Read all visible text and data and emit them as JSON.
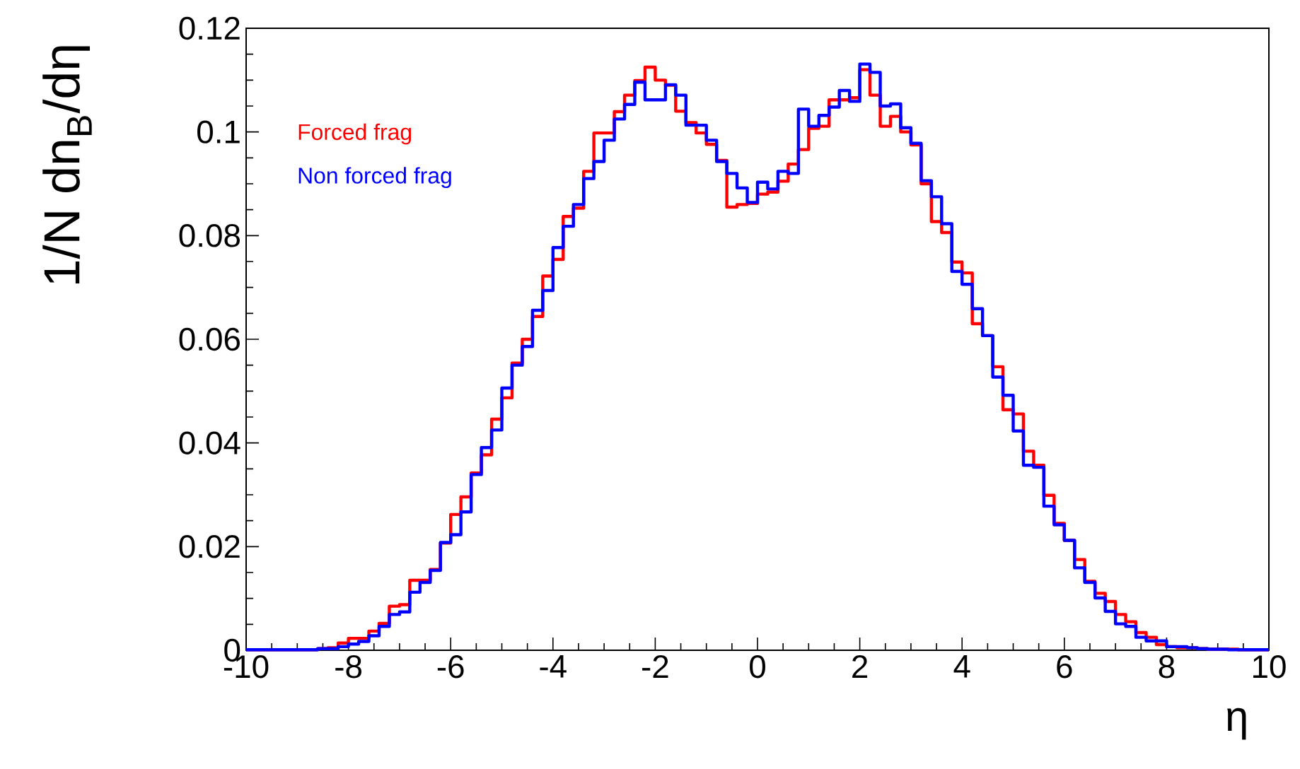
{
  "chart_data": {
    "type": "histogram",
    "xlabel": "η",
    "ylabel": "1/N dn$_{B}$/dη",
    "bins": [
      -10,
      -9.8,
      -9.6,
      -9.4,
      -9.2,
      -9,
      -8.8,
      -8.6,
      -8.4,
      -8.2,
      -8,
      -7.8,
      -7.6,
      -7.4,
      -7.2,
      -7,
      -6.8,
      -6.6,
      -6.4,
      -6.2,
      -6,
      -5.8,
      -5.6,
      -5.4,
      -5.2,
      -5,
      -4.8,
      -4.6,
      -4.4,
      -4.2,
      -4,
      -3.8,
      -3.6,
      -3.4,
      -3.2,
      -3,
      -2.8,
      -2.6,
      -2.4,
      -2.2,
      -2,
      -1.8,
      -1.6,
      -1.4,
      -1.2,
      -1,
      -0.8,
      -0.6,
      -0.4,
      -0.2,
      0,
      0.2,
      0.4,
      0.6,
      0.8,
      1,
      1.2,
      1.4,
      1.6,
      1.8,
      2,
      2.2,
      2.4,
      2.6,
      2.8,
      3,
      3.2,
      3.4,
      3.6,
      3.8,
      4,
      4.2,
      4.4,
      4.6,
      4.8,
      5,
      5.2,
      5.4,
      5.6,
      5.8,
      6,
      6.2,
      6.4,
      6.6,
      6.8,
      7,
      7.2,
      7.4,
      7.6,
      7.8,
      8,
      8.2,
      8.4,
      8.6,
      8.8,
      9,
      9.2,
      9.4,
      9.6,
      9.8,
      10
    ],
    "series": [
      {
        "name": "Forced frag",
        "color": "#ff0000",
        "values": [
          0.0001,
          0.0001,
          0.0001,
          0.0001,
          0.0001,
          0.0001,
          0.0001,
          0.0003,
          0.0005,
          0.0014,
          0.0023,
          0.0023,
          0.0037,
          0.0052,
          0.0085,
          0.0088,
          0.0135,
          0.0135,
          0.0156,
          0.0207,
          0.0262,
          0.0296,
          0.0342,
          0.0377,
          0.0446,
          0.0487,
          0.0554,
          0.06,
          0.0644,
          0.0722,
          0.0754,
          0.0837,
          0.0853,
          0.0924,
          0.0998,
          0.0998,
          0.1039,
          0.1071,
          0.1099,
          0.1125,
          0.11,
          0.109,
          0.104,
          0.1018,
          0.0998,
          0.0976,
          0.0945,
          0.0855,
          0.086,
          0.0862,
          0.088,
          0.0884,
          0.0905,
          0.0938,
          0.0966,
          0.1007,
          0.1011,
          0.1062,
          0.1062,
          0.1066,
          0.112,
          0.1071,
          0.1011,
          0.103,
          0.1,
          0.0975,
          0.09,
          0.0827,
          0.0806,
          0.0749,
          0.0728,
          0.063,
          0.0607,
          0.0547,
          0.0464,
          0.0456,
          0.0384,
          0.0357,
          0.0299,
          0.0245,
          0.0212,
          0.0175,
          0.0133,
          0.011,
          0.0094,
          0.0069,
          0.0055,
          0.0034,
          0.0025,
          0.0011,
          0.0007,
          0.0005,
          0.0005,
          0.0003,
          0.0002,
          0.0002,
          0.0002,
          0.0001,
          0.0001,
          0.0001
        ]
      },
      {
        "name": "Non forced frag",
        "color": "#0000ff",
        "values": [
          0.0001,
          0.0001,
          0.0001,
          0.0001,
          0.0001,
          0.0001,
          0.0001,
          0.0003,
          0.0003,
          0.0007,
          0.0012,
          0.0017,
          0.0028,
          0.0046,
          0.0069,
          0.0074,
          0.0112,
          0.0131,
          0.0154,
          0.0208,
          0.0223,
          0.0267,
          0.0339,
          0.0391,
          0.0425,
          0.0506,
          0.055,
          0.0586,
          0.0656,
          0.0694,
          0.0777,
          0.0818,
          0.086,
          0.091,
          0.0943,
          0.0984,
          0.1025,
          0.1053,
          0.1096,
          0.1062,
          0.1062,
          0.1091,
          0.1071,
          0.1013,
          0.1013,
          0.0984,
          0.0943,
          0.092,
          0.0892,
          0.0864,
          0.0903,
          0.089,
          0.0924,
          0.092,
          0.1044,
          0.1011,
          0.1032,
          0.1048,
          0.108,
          0.1059,
          0.1131,
          0.1115,
          0.105,
          0.1054,
          0.1008,
          0.0978,
          0.0906,
          0.0875,
          0.0823,
          0.0731,
          0.0706,
          0.0659,
          0.0607,
          0.0527,
          0.0492,
          0.0423,
          0.0357,
          0.0353,
          0.0278,
          0.0242,
          0.0212,
          0.0159,
          0.0131,
          0.0101,
          0.0075,
          0.0051,
          0.0046,
          0.0025,
          0.0018,
          0.0018,
          0.0007,
          0.0007,
          0.0005,
          0.0003,
          0.0002,
          0.0002,
          0.0001,
          0.0001,
          0.0001,
          0.0001
        ]
      }
    ],
    "xlim": [
      -10,
      10
    ],
    "ylim": [
      0,
      0.12
    ],
    "xticks": [
      -10,
      -8,
      -6,
      -4,
      -2,
      0,
      2,
      4,
      6,
      8,
      10
    ],
    "yticks": [
      0,
      0.02,
      0.04,
      0.06,
      0.08,
      0.1,
      0.12
    ],
    "legend": "top left"
  }
}
